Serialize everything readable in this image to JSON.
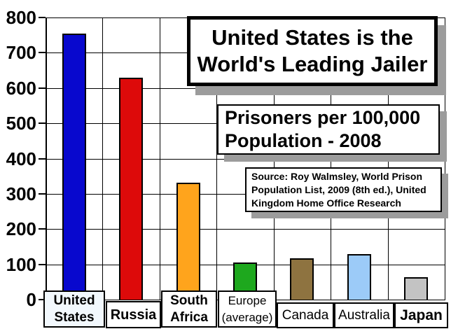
{
  "header": {
    "title_lines": [
      "United States is the",
      "World's Leading Jailer"
    ],
    "subtitle_lines": [
      "Prisoners per 100,000",
      "Population - 2008"
    ],
    "source_lines": [
      "Source: Roy Walmsley, World Prison",
      "Population List, 2009 (8th ed.), United",
      "Kingdom Home Office Research"
    ]
  },
  "chart_data": {
    "type": "bar",
    "title": "United States is the World's Leading Jailer",
    "subtitle": "Prisoners per 100,000 Population - 2008",
    "source": "Source: Roy Walmsley, World Prison Population List, 2009 (8th ed.), United Kingdom Home Office Research",
    "categories": [
      "United States",
      "Russia",
      "South Africa",
      "Europe (average)",
      "Canada",
      "Australia",
      "Japan"
    ],
    "values": [
      755,
      630,
      332,
      105,
      117,
      129,
      63
    ],
    "bar_colors": [
      "#0808CE",
      "#DD0A0A",
      "#FFA41C",
      "#1EA81E",
      "#8E7340",
      "#9CCBF8",
      "#C3C3C3"
    ],
    "category_label_lines": [
      [
        "United",
        "States"
      ],
      [
        "Russia"
      ],
      [
        "South",
        "Africa"
      ],
      [
        "Europe",
        "(average)"
      ],
      [
        "Canada"
      ],
      [
        "Australia"
      ],
      [
        "Japan"
      ]
    ],
    "category_label_bold": [
      true,
      true,
      true,
      false,
      false,
      false,
      true
    ],
    "xlabel": "",
    "ylabel": "",
    "ylim": [
      0,
      800
    ],
    "yticks": [
      800,
      700,
      600,
      500,
      400,
      300,
      200,
      100,
      0
    ],
    "grid": "both",
    "legend_position": "none",
    "colors": {
      "background": "#FFFFFF",
      "grid": "#000000",
      "text": "#000000",
      "shadow": "#9C9C9C"
    }
  }
}
